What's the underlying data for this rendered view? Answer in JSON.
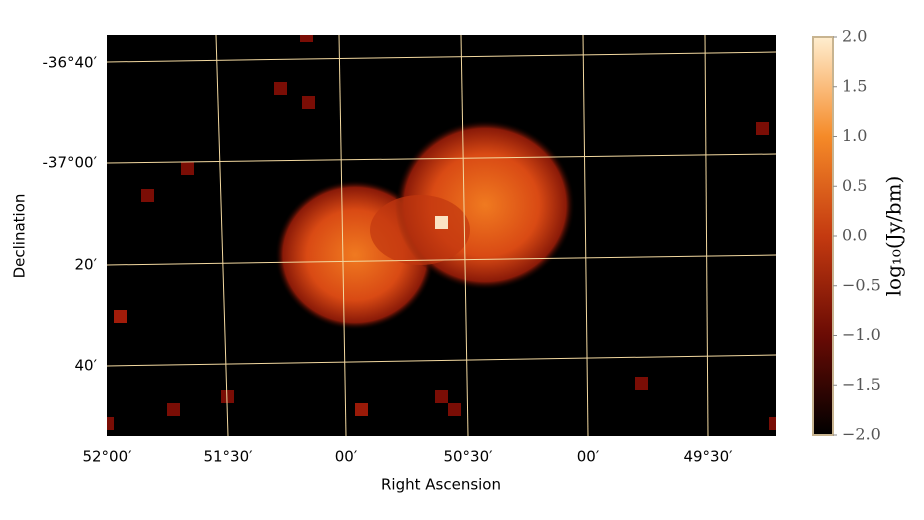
{
  "chart_data": {
    "type": "heatmap",
    "x_label": "Right Ascension",
    "y_label": "Declination",
    "xtick_labels": [
      "52°00′",
      "51°30′",
      "00′",
      "50°30′",
      "00′",
      "49°30′"
    ],
    "ytick_labels": [
      "-36°40′",
      "-37°00′",
      "20′",
      "40′"
    ],
    "colorbar": {
      "label": "log₁₀(Jy/bm)",
      "lim": [
        -2,
        2
      ],
      "ticks": [
        {
          "value": 2,
          "label": "2.0"
        },
        {
          "value": 1.5,
          "label": "1.5"
        },
        {
          "value": 1,
          "label": "1.0"
        },
        {
          "value": 0.5,
          "label": "0.5"
        },
        {
          "value": 0,
          "label": "0.0"
        },
        {
          "value": -0.5,
          "label": "−0.5"
        },
        {
          "value": -1,
          "label": "−1.0"
        },
        {
          "value": -1.5,
          "label": "−1.5"
        },
        {
          "value": -2,
          "label": "−2.0"
        }
      ]
    }
  }
}
